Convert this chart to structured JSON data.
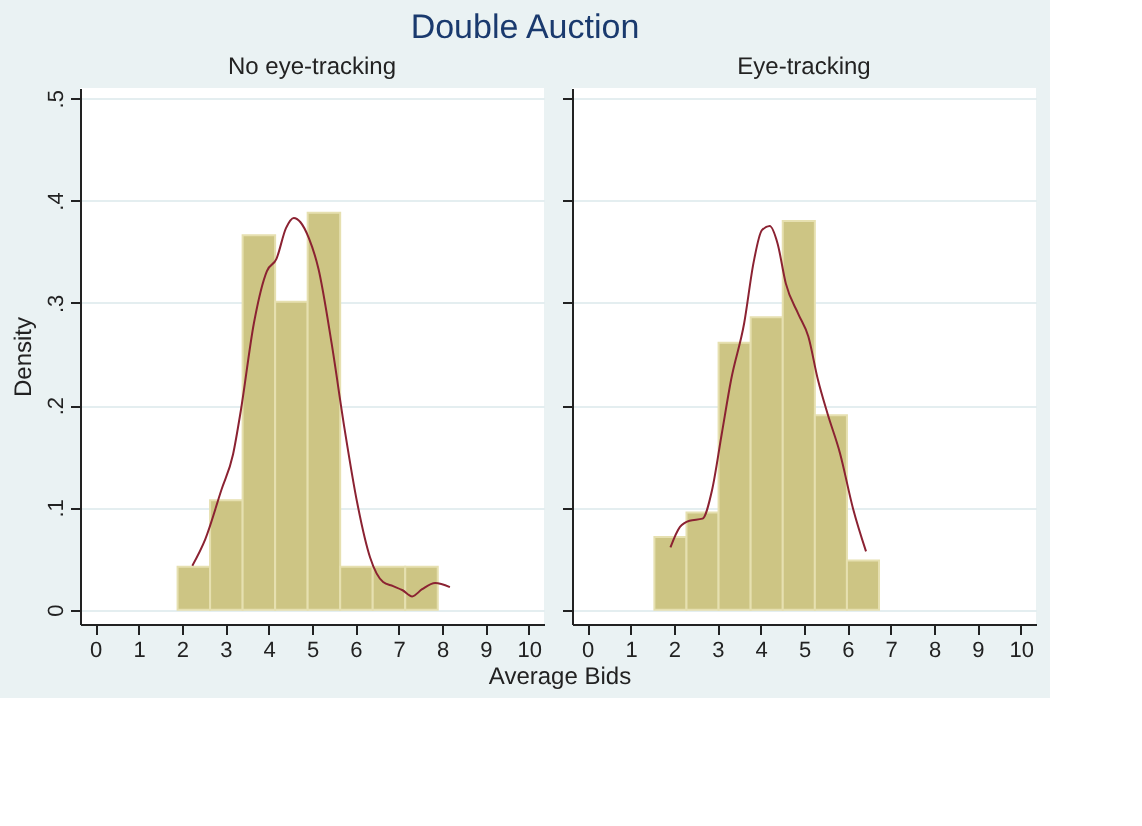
{
  "chart_data": [
    {
      "type": "histogram",
      "title": "Double Auction",
      "subtitle": "No eye-tracking",
      "ylabel": "Density",
      "xlabel": "Average Bids",
      "color": "#cdc584",
      "grid": "y",
      "bins": [
        1.9,
        2.65,
        3.4,
        4.15,
        4.9,
        5.65,
        6.4,
        7.15,
        7.9
      ],
      "values": [
        0.042,
        0.107,
        0.366,
        0.301,
        0.388,
        0.042,
        0.042,
        0.042
      ],
      "series": [
        {
          "type": "line",
          "color": "#8b2232",
          "x": [
            2.24,
            2.54,
            2.91,
            3.18,
            3.36,
            3.66,
            3.96,
            4.18,
            4.4,
            4.58,
            4.73,
            4.93,
            5.15,
            5.45,
            5.75,
            6.04,
            6.34,
            6.64,
            6.87,
            7.09,
            7.31,
            7.54,
            7.84,
            8.18
          ],
          "values": [
            0.043,
            0.069,
            0.117,
            0.152,
            0.195,
            0.28,
            0.331,
            0.343,
            0.373,
            0.383,
            0.379,
            0.363,
            0.333,
            0.261,
            0.177,
            0.105,
            0.051,
            0.027,
            0.023,
            0.019,
            0.013,
            0.02,
            0.026,
            0.022
          ]
        }
      ],
      "xlim": [
        -0.35,
        10.35
      ],
      "xticks": [
        0,
        1,
        2,
        3,
        4,
        5,
        6,
        7,
        8,
        9,
        10
      ],
      "ylim": [
        -0.014,
        0.51
      ],
      "yticks": [
        0,
        {
          "value": 0.1,
          "label": ".1"
        },
        {
          "value": 0.2,
          "label": ".2"
        },
        {
          "value": 0.3,
          "label": ".3"
        },
        {
          "value": 0.4,
          "label": ".4"
        },
        {
          "value": 0.5,
          "label": ".5"
        }
      ]
    },
    {
      "type": "histogram",
      "subtitle": "Eye-tracking",
      "color": "#cdc584",
      "grid": "y",
      "tick_labels": "x",
      "bins": [
        1.55,
        2.29,
        3.03,
        3.77,
        4.51,
        5.25,
        5.99,
        6.73
      ],
      "yticks": [
        {
          "value": 0,
          "label": null
        },
        {
          "value": 0.1,
          "label": null
        },
        {
          "value": 0.2,
          "label": null
        },
        {
          "value": 0.3,
          "label": null
        },
        {
          "value": 0.4,
          "label": null
        },
        {
          "value": 0.5,
          "label": null
        }
      ],
      "values": [
        0.071,
        0.095,
        0.261,
        0.286,
        0.38,
        0.19,
        0.048
      ],
      "series": [
        {
          "type": "line",
          "color": "#8b2232",
          "x": [
            1.92,
            2.14,
            2.36,
            2.66,
            2.88,
            3.1,
            3.32,
            3.62,
            3.84,
            4.03,
            4.21,
            4.39,
            4.58,
            4.87,
            5.1,
            5.32,
            5.54,
            5.83,
            6.13,
            6.43
          ],
          "values": [
            0.061,
            0.081,
            0.087,
            0.089,
            0.117,
            0.171,
            0.225,
            0.28,
            0.34,
            0.371,
            0.375,
            0.358,
            0.319,
            0.289,
            0.267,
            0.225,
            0.192,
            0.153,
            0.099,
            0.057
          ]
        }
      ],
      "xlim": [
        -0.35,
        10.35
      ],
      "xticks": [
        0,
        1,
        2,
        3,
        4,
        5,
        6,
        7,
        8,
        9,
        10
      ],
      "ylim": [
        -0.014,
        0.51
      ]
    }
  ]
}
